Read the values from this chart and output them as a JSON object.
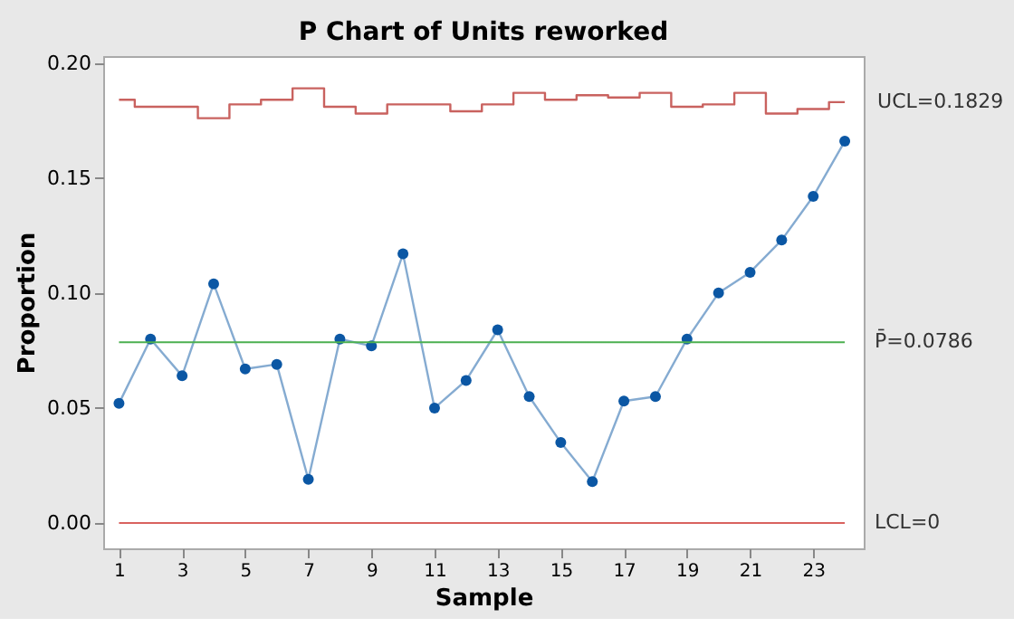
{
  "chart_data": {
    "type": "line",
    "title": "P Chart of Units reworked",
    "xlabel": "Sample",
    "ylabel": "Proportion",
    "x": [
      1,
      2,
      3,
      4,
      5,
      6,
      7,
      8,
      9,
      10,
      11,
      12,
      13,
      14,
      15,
      16,
      17,
      18,
      19,
      20,
      21,
      22,
      23,
      24
    ],
    "series": [
      {
        "color": "#0b57a4",
        "marker": "circle",
        "values": [
          0.052,
          0.08,
          0.064,
          0.104,
          0.067,
          0.069,
          0.019,
          0.08,
          0.077,
          0.117,
          0.05,
          0.062,
          0.084,
          0.055,
          0.035,
          0.018,
          0.053,
          0.055,
          0.08,
          0.1,
          0.109,
          0.123,
          0.142,
          0.166
        ]
      },
      {
        "type": "step",
        "color": "#c9625f",
        "marker": "none",
        "values": [
          0.184,
          0.181,
          0.181,
          0.176,
          0.182,
          0.184,
          0.189,
          0.181,
          0.178,
          0.182,
          0.182,
          0.179,
          0.182,
          0.187,
          0.184,
          0.186,
          0.185,
          0.187,
          0.181,
          0.182,
          0.187,
          0.178,
          0.18,
          0.183
        ]
      }
    ],
    "ref_lines": [
      {
        "axis": "y",
        "value": 0.0786,
        "label": "P̄=0.0786",
        "color": "#4cb050"
      },
      {
        "axis": "y",
        "value": 0,
        "label": "LCL=0",
        "color": "#d9625f"
      }
    ],
    "annotations": [
      {
        "text": "UCL=0.1829",
        "x": 24,
        "y": 0.1829
      }
    ],
    "xlim": [
      0.5,
      24.6
    ],
    "xticks": [
      1,
      3,
      5,
      7,
      9,
      11,
      13,
      15,
      17,
      19,
      21,
      23
    ],
    "ylim": [
      -0.011,
      0.203
    ],
    "yticks": [
      {
        "value": 0,
        "label": "0.00"
      },
      {
        "value": 0.05,
        "label": "0.05"
      },
      {
        "value": 0.1,
        "label": "0.10"
      },
      {
        "value": 0.15,
        "label": "0.15"
      },
      {
        "value": 0.2,
        "label": "0.20"
      }
    ],
    "grid": false
  }
}
